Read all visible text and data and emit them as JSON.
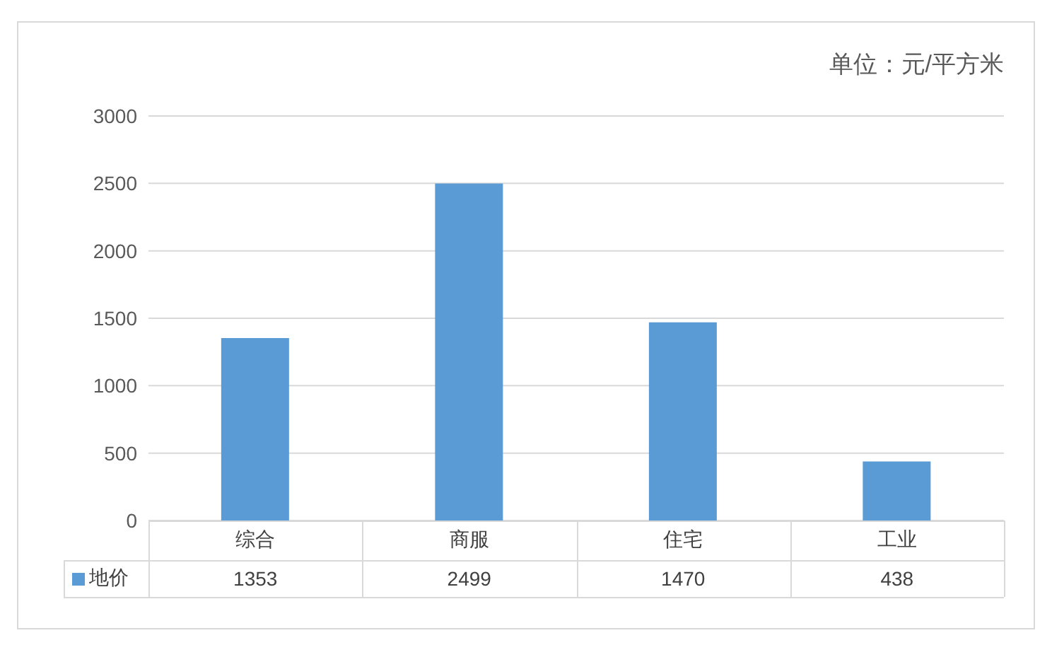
{
  "chart_data": {
    "type": "bar",
    "annotations": [
      "单位：元/平方米"
    ],
    "categories": [
      "综合",
      "商服",
      "住宅",
      "工业"
    ],
    "series": [
      {
        "name": "地价",
        "color": "#5b9bd5",
        "values": [
          1353,
          2499,
          1470,
          438
        ]
      }
    ],
    "ylim": [
      0,
      3000
    ],
    "yticks": [
      0,
      500,
      1000,
      1500,
      2000,
      2500,
      3000
    ],
    "grid": "y",
    "legend": "bottom",
    "data_labels": true
  }
}
